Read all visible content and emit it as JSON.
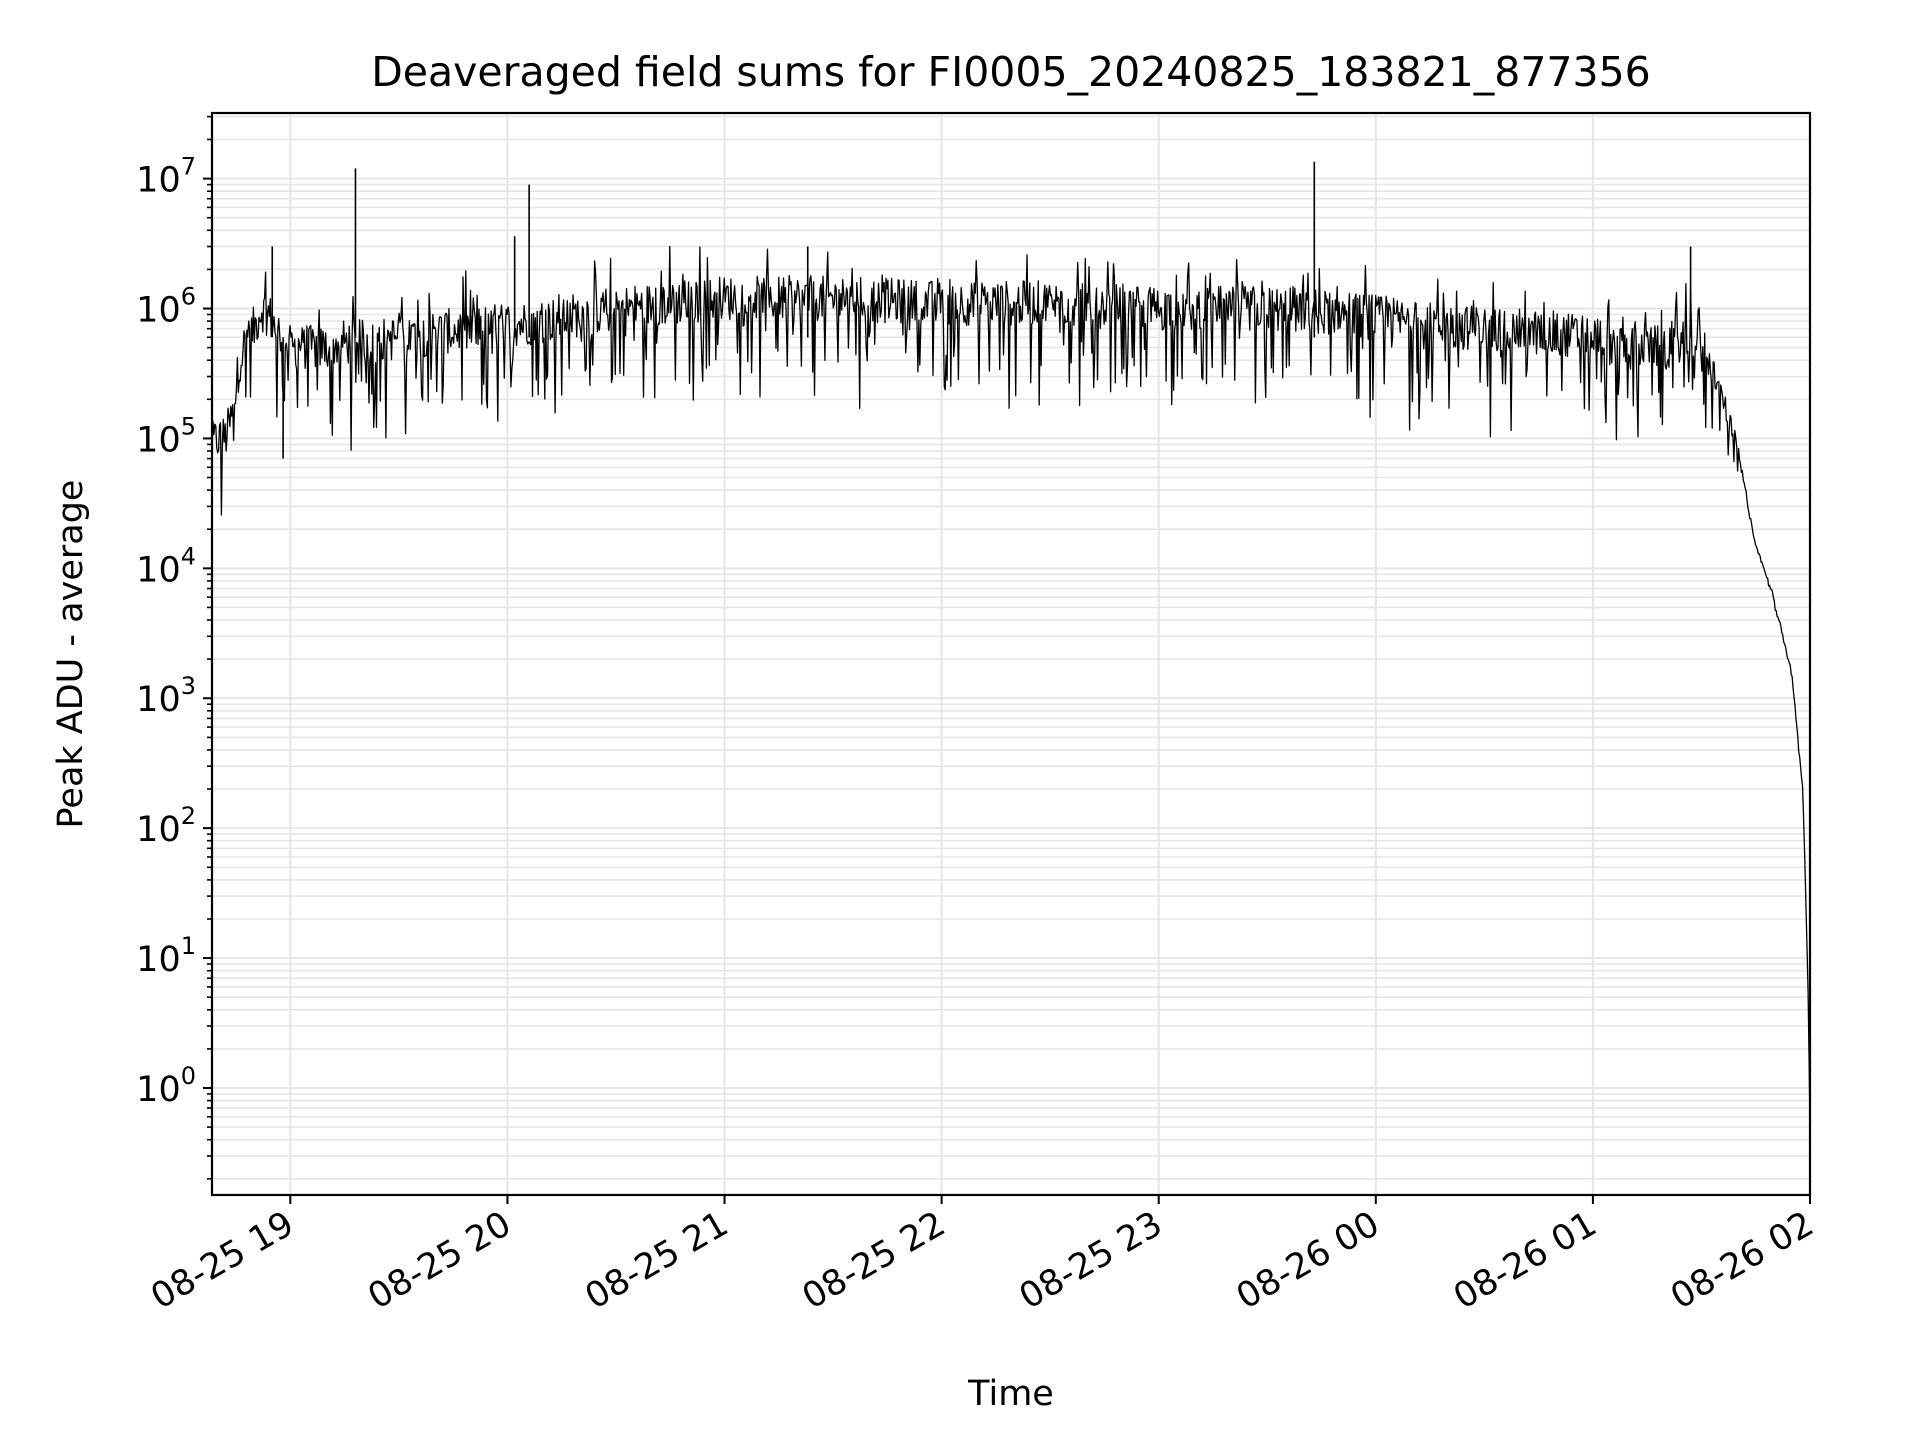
{
  "chart_data": {
    "type": "line",
    "title": "Deaveraged field sums for FI0005_20240825_183821_877356",
    "xlabel": "Time",
    "ylabel": "Peak ADU - average",
    "yscale": "log",
    "ylim": [
      0.15,
      32000000.0
    ],
    "xlim": [
      "2024-08-25 18:38:21",
      "2024-08-26 02:00:00"
    ],
    "grid": true,
    "line_color": "#000000",
    "grid_color": "#e6e6e6",
    "x_ticks": [
      {
        "t": "2024-08-25 19:00",
        "label": "08-25 19"
      },
      {
        "t": "2024-08-25 20:00",
        "label": "08-25 20"
      },
      {
        "t": "2024-08-25 21:00",
        "label": "08-25 21"
      },
      {
        "t": "2024-08-25 22:00",
        "label": "08-25 22"
      },
      {
        "t": "2024-08-25 23:00",
        "label": "08-25 23"
      },
      {
        "t": "2024-08-26 00:00",
        "label": "08-26 00"
      },
      {
        "t": "2024-08-26 01:00",
        "label": "08-26 01"
      },
      {
        "t": "2024-08-26 02:00",
        "label": "08-26 02"
      }
    ],
    "y_ticks": [
      {
        "value": 1,
        "base": "10",
        "exp": "0"
      },
      {
        "value": 10,
        "base": "10",
        "exp": "1"
      },
      {
        "value": 100,
        "base": "10",
        "exp": "2"
      },
      {
        "value": 1000,
        "base": "10",
        "exp": "3"
      },
      {
        "value": 10000,
        "base": "10",
        "exp": "4"
      },
      {
        "value": 100000,
        "base": "10",
        "exp": "5"
      },
      {
        "value": 1000000,
        "base": "10",
        "exp": "6"
      },
      {
        "value": 10000000,
        "base": "10",
        "exp": "7"
      }
    ],
    "series": [
      {
        "x": [
          "2024-08-25 18:38:21",
          "2024-08-25 18:40",
          "2024-08-25 18:42",
          "2024-08-25 18:44",
          "2024-08-25 18:46",
          "2024-08-25 18:48",
          "2024-08-25 18:50",
          "2024-08-25 18:52",
          "2024-08-25 18:54",
          "2024-08-25 18:56",
          "2024-08-25 18:58",
          "2024-08-25 19:00",
          "2024-08-25 19:05",
          "2024-08-25 19:10",
          "2024-08-25 19:15",
          "2024-08-25 19:20",
          "2024-08-25 19:30",
          "2024-08-25 19:40",
          "2024-08-25 19:50",
          "2024-08-25 20:00",
          "2024-08-25 20:10",
          "2024-08-25 20:20",
          "2024-08-25 20:30",
          "2024-08-25 20:45",
          "2024-08-25 21:00",
          "2024-08-25 21:15",
          "2024-08-25 21:30",
          "2024-08-25 21:45",
          "2024-08-25 22:00",
          "2024-08-25 22:15",
          "2024-08-25 22:30",
          "2024-08-25 22:45",
          "2024-08-25 23:00",
          "2024-08-25 23:15",
          "2024-08-25 23:30",
          "2024-08-25 23:45",
          "2024-08-26 00:00",
          "2024-08-26 00:15",
          "2024-08-26 00:30",
          "2024-08-26 00:45",
          "2024-08-26 01:00",
          "2024-08-26 01:10",
          "2024-08-26 01:20",
          "2024-08-26 01:25",
          "2024-08-26 01:30",
          "2024-08-26 01:35",
          "2024-08-26 01:40",
          "2024-08-26 01:45",
          "2024-08-26 01:50",
          "2024-08-26 01:55",
          "2024-08-26 01:58",
          "2024-08-26 01:59",
          "2024-08-26 01:59:30",
          "2024-08-26 02:00"
        ],
        "values": [
          90000,
          100000,
          100000,
          150000,
          400000,
          600000,
          700000,
          1000000,
          900000,
          700000,
          600000,
          500000,
          500000,
          500000,
          550000,
          550000,
          600000,
          650000,
          700000,
          750000,
          800000,
          900000,
          1000000,
          1100000,
          1200000,
          1200000,
          1200000,
          1150000,
          1100000,
          1100000,
          1100000,
          1050000,
          1000000,
          1000000,
          1000000,
          950000,
          850000,
          750000,
          700000,
          650000,
          600000,
          500000,
          500000,
          600000,
          550000,
          250000,
          80000,
          15000,
          6000,
          1500,
          200,
          20,
          5,
          0.5
        ]
      }
    ],
    "spikes": [
      {
        "x": "2024-08-25 18:55",
        "y": 3000000
      },
      {
        "x": "2024-08-25 18:58",
        "y": 70000
      },
      {
        "x": "2024-08-25 19:18",
        "y": 12000000
      },
      {
        "x": "2024-08-25 20:02",
        "y": 3600000
      },
      {
        "x": "2024-08-25 20:06",
        "y": 9000000
      },
      {
        "x": "2024-08-25 21:23",
        "y": 3000000
      },
      {
        "x": "2024-08-25 23:43",
        "y": 13500000
      },
      {
        "x": "2024-08-26 01:27",
        "y": 3000000
      }
    ]
  }
}
